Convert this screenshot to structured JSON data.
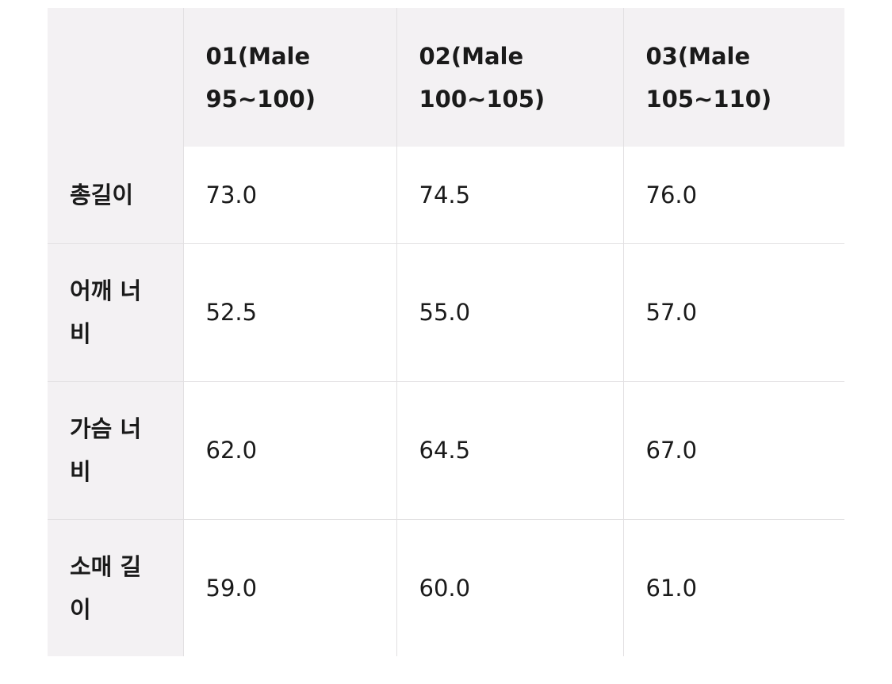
{
  "table": {
    "columns": [
      "01(Male 95~100)",
      "02(Male 100~105)",
      "03(Male 105~110)"
    ],
    "rows": [
      {
        "label": "총길이",
        "cells": [
          "73.0",
          "74.5",
          "76.0"
        ]
      },
      {
        "label": "어깨 너비",
        "cells": [
          "52.5",
          "55.0",
          "57.0"
        ]
      },
      {
        "label": "가슴 너비",
        "cells": [
          "62.0",
          "64.5",
          "67.0"
        ]
      },
      {
        "label": "소매 길이",
        "cells": [
          "59.0",
          "60.0",
          "61.0"
        ]
      }
    ]
  }
}
